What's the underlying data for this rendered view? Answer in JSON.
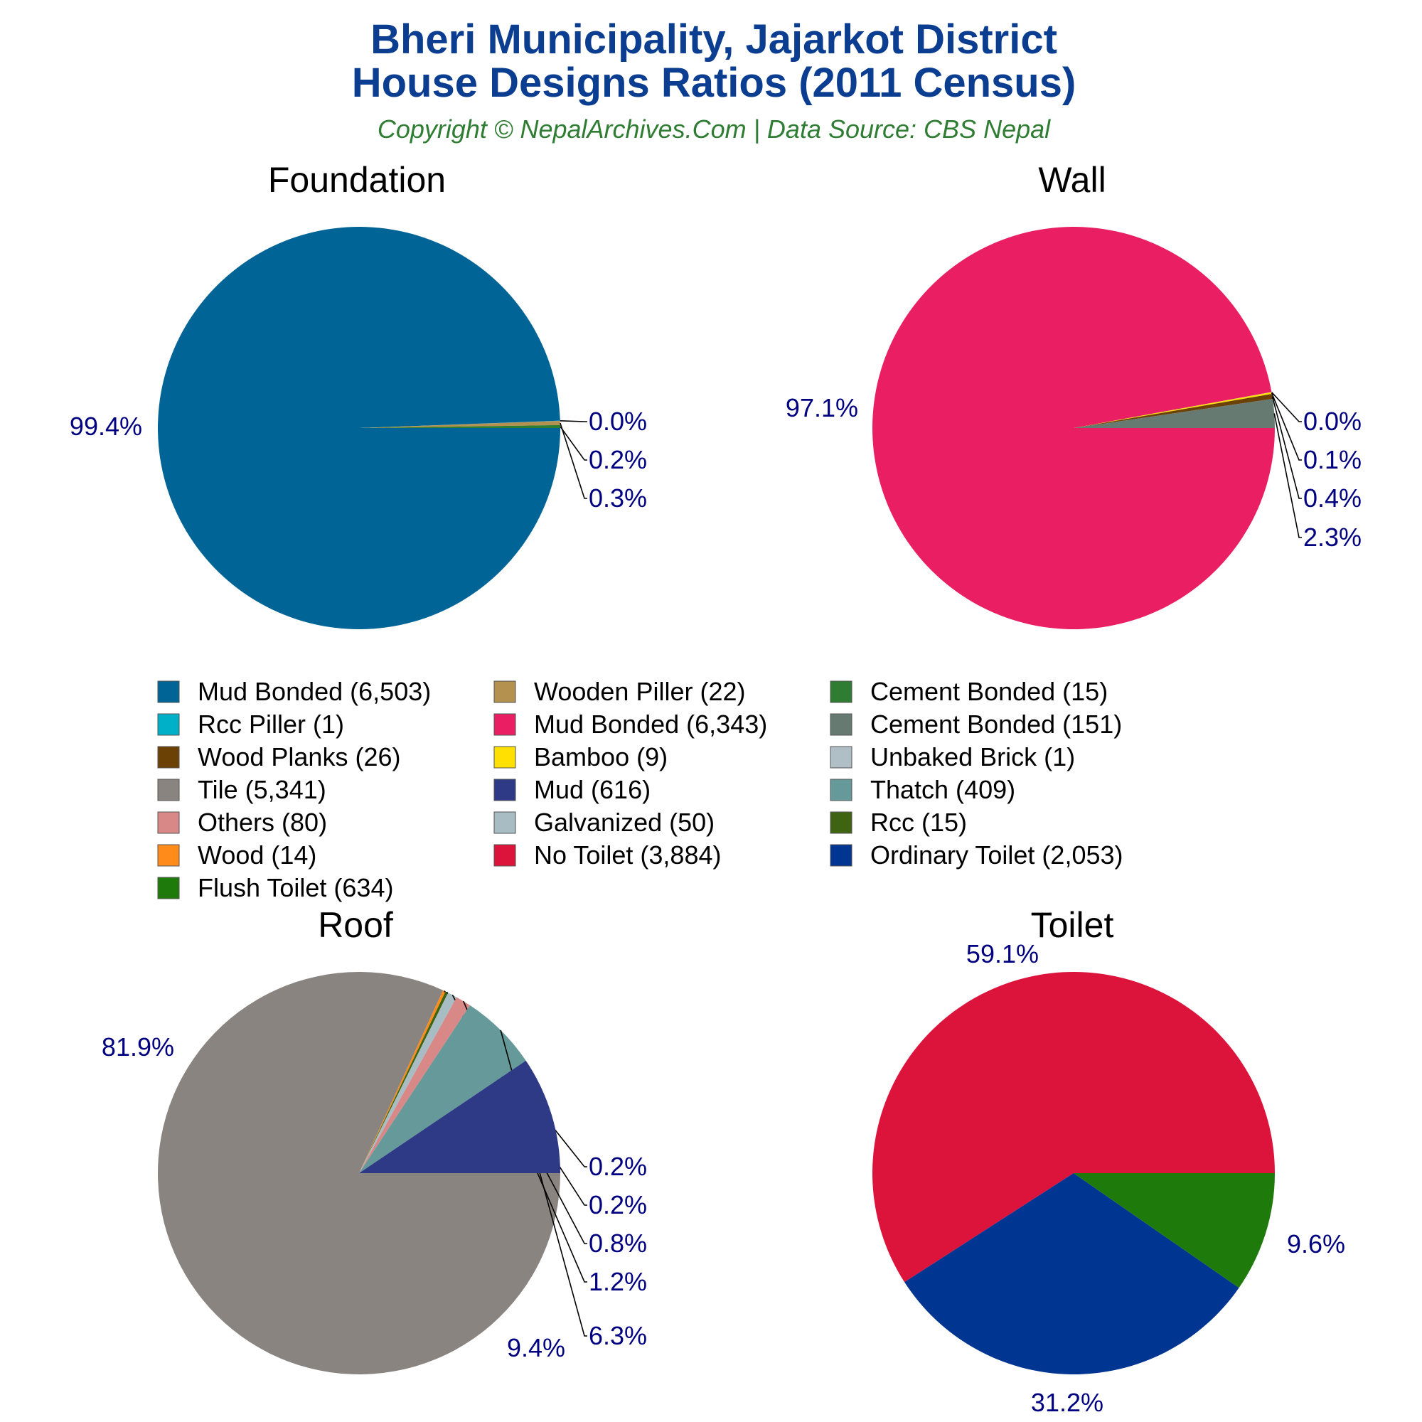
{
  "header": {
    "title_line1": "Bheri Municipality, Jajarkot District",
    "title_line2": "House Designs Ratios (2011 Census)",
    "subtitle": "Copyright © NepalArchives.Com | Data Source: CBS Nepal"
  },
  "chart_data": [
    {
      "type": "pie",
      "title": "Foundation",
      "slices": [
        {
          "label": "Mud Bonded",
          "value": 6503,
          "percent_label": "99.4%",
          "color": "#006496"
        },
        {
          "label": "Rcc Piller",
          "value": 1,
          "percent_label": "0.0%",
          "color": "#00AFC8"
        },
        {
          "label": "Wooden Piller",
          "value": 22,
          "percent_label": "0.3%",
          "color": "#B4914E"
        },
        {
          "label": "Cement Bonded",
          "value": 15,
          "percent_label": "0.2%",
          "color": "#2E7D32"
        }
      ]
    },
    {
      "type": "pie",
      "title": "Wall",
      "slices": [
        {
          "label": "Mud Bonded",
          "value": 6343,
          "percent_label": "97.1%",
          "color": "#E91E63"
        },
        {
          "label": "Unbaked Brick",
          "value": 1,
          "percent_label": "0.0%",
          "color": "#B0BEC5"
        },
        {
          "label": "Bamboo",
          "value": 9,
          "percent_label": "0.1%",
          "color": "#FFE000"
        },
        {
          "label": "Wood Planks",
          "value": 26,
          "percent_label": "0.4%",
          "color": "#6B4106"
        },
        {
          "label": "Cement Bonded",
          "value": 151,
          "percent_label": "2.3%",
          "color": "#667A72"
        }
      ]
    },
    {
      "type": "pie",
      "title": "Roof",
      "slices": [
        {
          "label": "Tile",
          "value": 5341,
          "percent_label": "81.9%",
          "color": "#8A8480"
        },
        {
          "label": "Wood",
          "value": 14,
          "percent_label": "0.2%",
          "color": "#FF8C1A"
        },
        {
          "label": "Rcc",
          "value": 15,
          "percent_label": "0.2%",
          "color": "#3E6411"
        },
        {
          "label": "Galvanized",
          "value": 50,
          "percent_label": "0.8%",
          "color": "#A8BCC4"
        },
        {
          "label": "Others",
          "value": 80,
          "percent_label": "1.2%",
          "color": "#D98888"
        },
        {
          "label": "Thatch",
          "value": 409,
          "percent_label": "6.3%",
          "color": "#669999"
        },
        {
          "label": "Mud",
          "value": 616,
          "percent_label": "9.4%",
          "color": "#2E3A85"
        }
      ]
    },
    {
      "type": "pie",
      "title": "Toilet",
      "slices": [
        {
          "label": "No Toilet",
          "value": 3884,
          "percent_label": "59.1%",
          "color": "#DC143C"
        },
        {
          "label": "Flush Toilet",
          "value": 634,
          "percent_label": "9.6%",
          "color": "#1E7A0A"
        },
        {
          "label": "Ordinary Toilet",
          "value": 2053,
          "percent_label": "31.2%",
          "color": "#003591"
        }
      ]
    }
  ],
  "legend": {
    "items": [
      {
        "text": "Mud Bonded (6,503)",
        "color": "#006496"
      },
      {
        "text": "Rcc Piller (1)",
        "color": "#00AFC8"
      },
      {
        "text": "Wood Planks (26)",
        "color": "#6B4106"
      },
      {
        "text": "Tile (5,341)",
        "color": "#8A8480"
      },
      {
        "text": "Others (80)",
        "color": "#D98888"
      },
      {
        "text": "Wood (14)",
        "color": "#FF8C1A"
      },
      {
        "text": "Flush Toilet (634)",
        "color": "#1E7A0A"
      },
      {
        "text": "Wooden Piller (22)",
        "color": "#B4914E"
      },
      {
        "text": "Mud Bonded (6,343)",
        "color": "#E91E63"
      },
      {
        "text": "Bamboo (9)",
        "color": "#FFE000"
      },
      {
        "text": "Mud (616)",
        "color": "#2E3A85"
      },
      {
        "text": "Galvanized (50)",
        "color": "#A8BCC4"
      },
      {
        "text": "No Toilet (3,884)",
        "color": "#DC143C"
      },
      {
        "text": "Cement Bonded (15)",
        "color": "#2E7D32"
      },
      {
        "text": "Cement Bonded (151)",
        "color": "#667A72"
      },
      {
        "text": "Unbaked Brick (1)",
        "color": "#B0BEC5"
      },
      {
        "text": "Thatch (409)",
        "color": "#669999"
      },
      {
        "text": "Rcc (15)",
        "color": "#3E6411"
      },
      {
        "text": "Ordinary Toilet (2,053)",
        "color": "#003591"
      }
    ]
  }
}
